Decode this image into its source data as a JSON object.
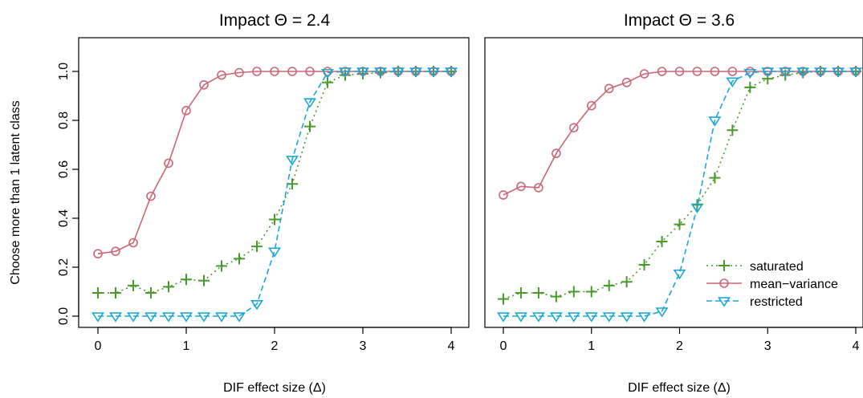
{
  "chart_data": [
    {
      "type": "line",
      "title": "Impact Θ = 2.4",
      "xlabel": "DIF effect size (Δ)",
      "ylabel": "Choose more than 1 latent class",
      "xlim": [
        0,
        4
      ],
      "ylim": [
        0,
        1
      ],
      "xticks": [
        "0",
        "1",
        "2",
        "3",
        "4"
      ],
      "yticks": [
        "0.0",
        "0.2",
        "0.4",
        "0.6",
        "0.8",
        "1.0"
      ],
      "x": [
        0,
        0.2,
        0.4,
        0.6,
        0.8,
        1.0,
        1.2,
        1.4,
        1.6,
        1.8,
        2.0,
        2.2,
        2.4,
        2.6,
        2.8,
        3.0,
        3.2,
        3.4,
        3.6,
        3.8,
        4.0
      ],
      "series": [
        {
          "name": "saturated",
          "color": "#4a9a2a",
          "marker": "plus",
          "line": "dotted",
          "values": [
            0.095,
            0.095,
            0.125,
            0.095,
            0.12,
            0.15,
            0.145,
            0.205,
            0.235,
            0.285,
            0.395,
            0.54,
            0.775,
            0.955,
            0.985,
            0.99,
            0.995,
            1.0,
            1.0,
            1.0,
            1.0
          ]
        },
        {
          "name": "mean−variance",
          "color": "#cc6677",
          "marker": "circle",
          "line": "solid",
          "values": [
            0.255,
            0.265,
            0.3,
            0.49,
            0.625,
            0.84,
            0.945,
            0.985,
            0.995,
            1.0,
            1.0,
            1.0,
            1.0,
            1.0,
            1.0,
            1.0,
            1.0,
            1.0,
            1.0,
            1.0,
            1.0
          ]
        },
        {
          "name": "restricted",
          "color": "#1ba7d6",
          "marker": "triangle-down",
          "line": "dashed",
          "values": [
            0.0,
            0.0,
            0.0,
            0.0,
            0.0,
            0.0,
            0.0,
            0.0,
            0.0,
            0.05,
            0.265,
            0.64,
            0.875,
            0.995,
            1.0,
            1.0,
            1.0,
            1.0,
            1.0,
            1.0,
            1.0
          ]
        }
      ]
    },
    {
      "type": "line",
      "title": "Impact Θ = 3.6",
      "xlabel": "DIF effect size (Δ)",
      "xlim": [
        0,
        4
      ],
      "ylim": [
        0,
        1
      ],
      "xticks": [
        "0",
        "1",
        "2",
        "3",
        "4"
      ],
      "legend": "bottom-right",
      "x": [
        0,
        0.2,
        0.4,
        0.6,
        0.8,
        1.0,
        1.2,
        1.4,
        1.6,
        1.8,
        2.0,
        2.2,
        2.4,
        2.6,
        2.8,
        3.0,
        3.2,
        3.4,
        3.6,
        3.8,
        4.0
      ],
      "series": [
        {
          "name": "saturated",
          "color": "#4a9a2a",
          "marker": "plus",
          "line": "dotted",
          "values": [
            0.07,
            0.095,
            0.095,
            0.08,
            0.1,
            0.1,
            0.125,
            0.14,
            0.21,
            0.305,
            0.375,
            0.455,
            0.565,
            0.76,
            0.935,
            0.97,
            0.985,
            0.995,
            1.0,
            1.0,
            1.0
          ]
        },
        {
          "name": "mean−variance",
          "color": "#cc6677",
          "marker": "circle",
          "line": "solid",
          "values": [
            0.495,
            0.53,
            0.525,
            0.665,
            0.77,
            0.86,
            0.93,
            0.955,
            0.99,
            1.0,
            1.0,
            1.0,
            1.0,
            1.0,
            1.0,
            1.0,
            1.0,
            1.0,
            1.0,
            1.0,
            1.0
          ]
        },
        {
          "name": "restricted",
          "color": "#1ba7d6",
          "marker": "triangle-down",
          "line": "dashed",
          "values": [
            0.0,
            0.0,
            0.0,
            0.0,
            0.0,
            0.0,
            0.0,
            0.0,
            0.0,
            0.02,
            0.175,
            0.445,
            0.8,
            0.96,
            0.995,
            1.0,
            1.0,
            1.0,
            1.0,
            1.0,
            1.0
          ]
        }
      ]
    }
  ]
}
